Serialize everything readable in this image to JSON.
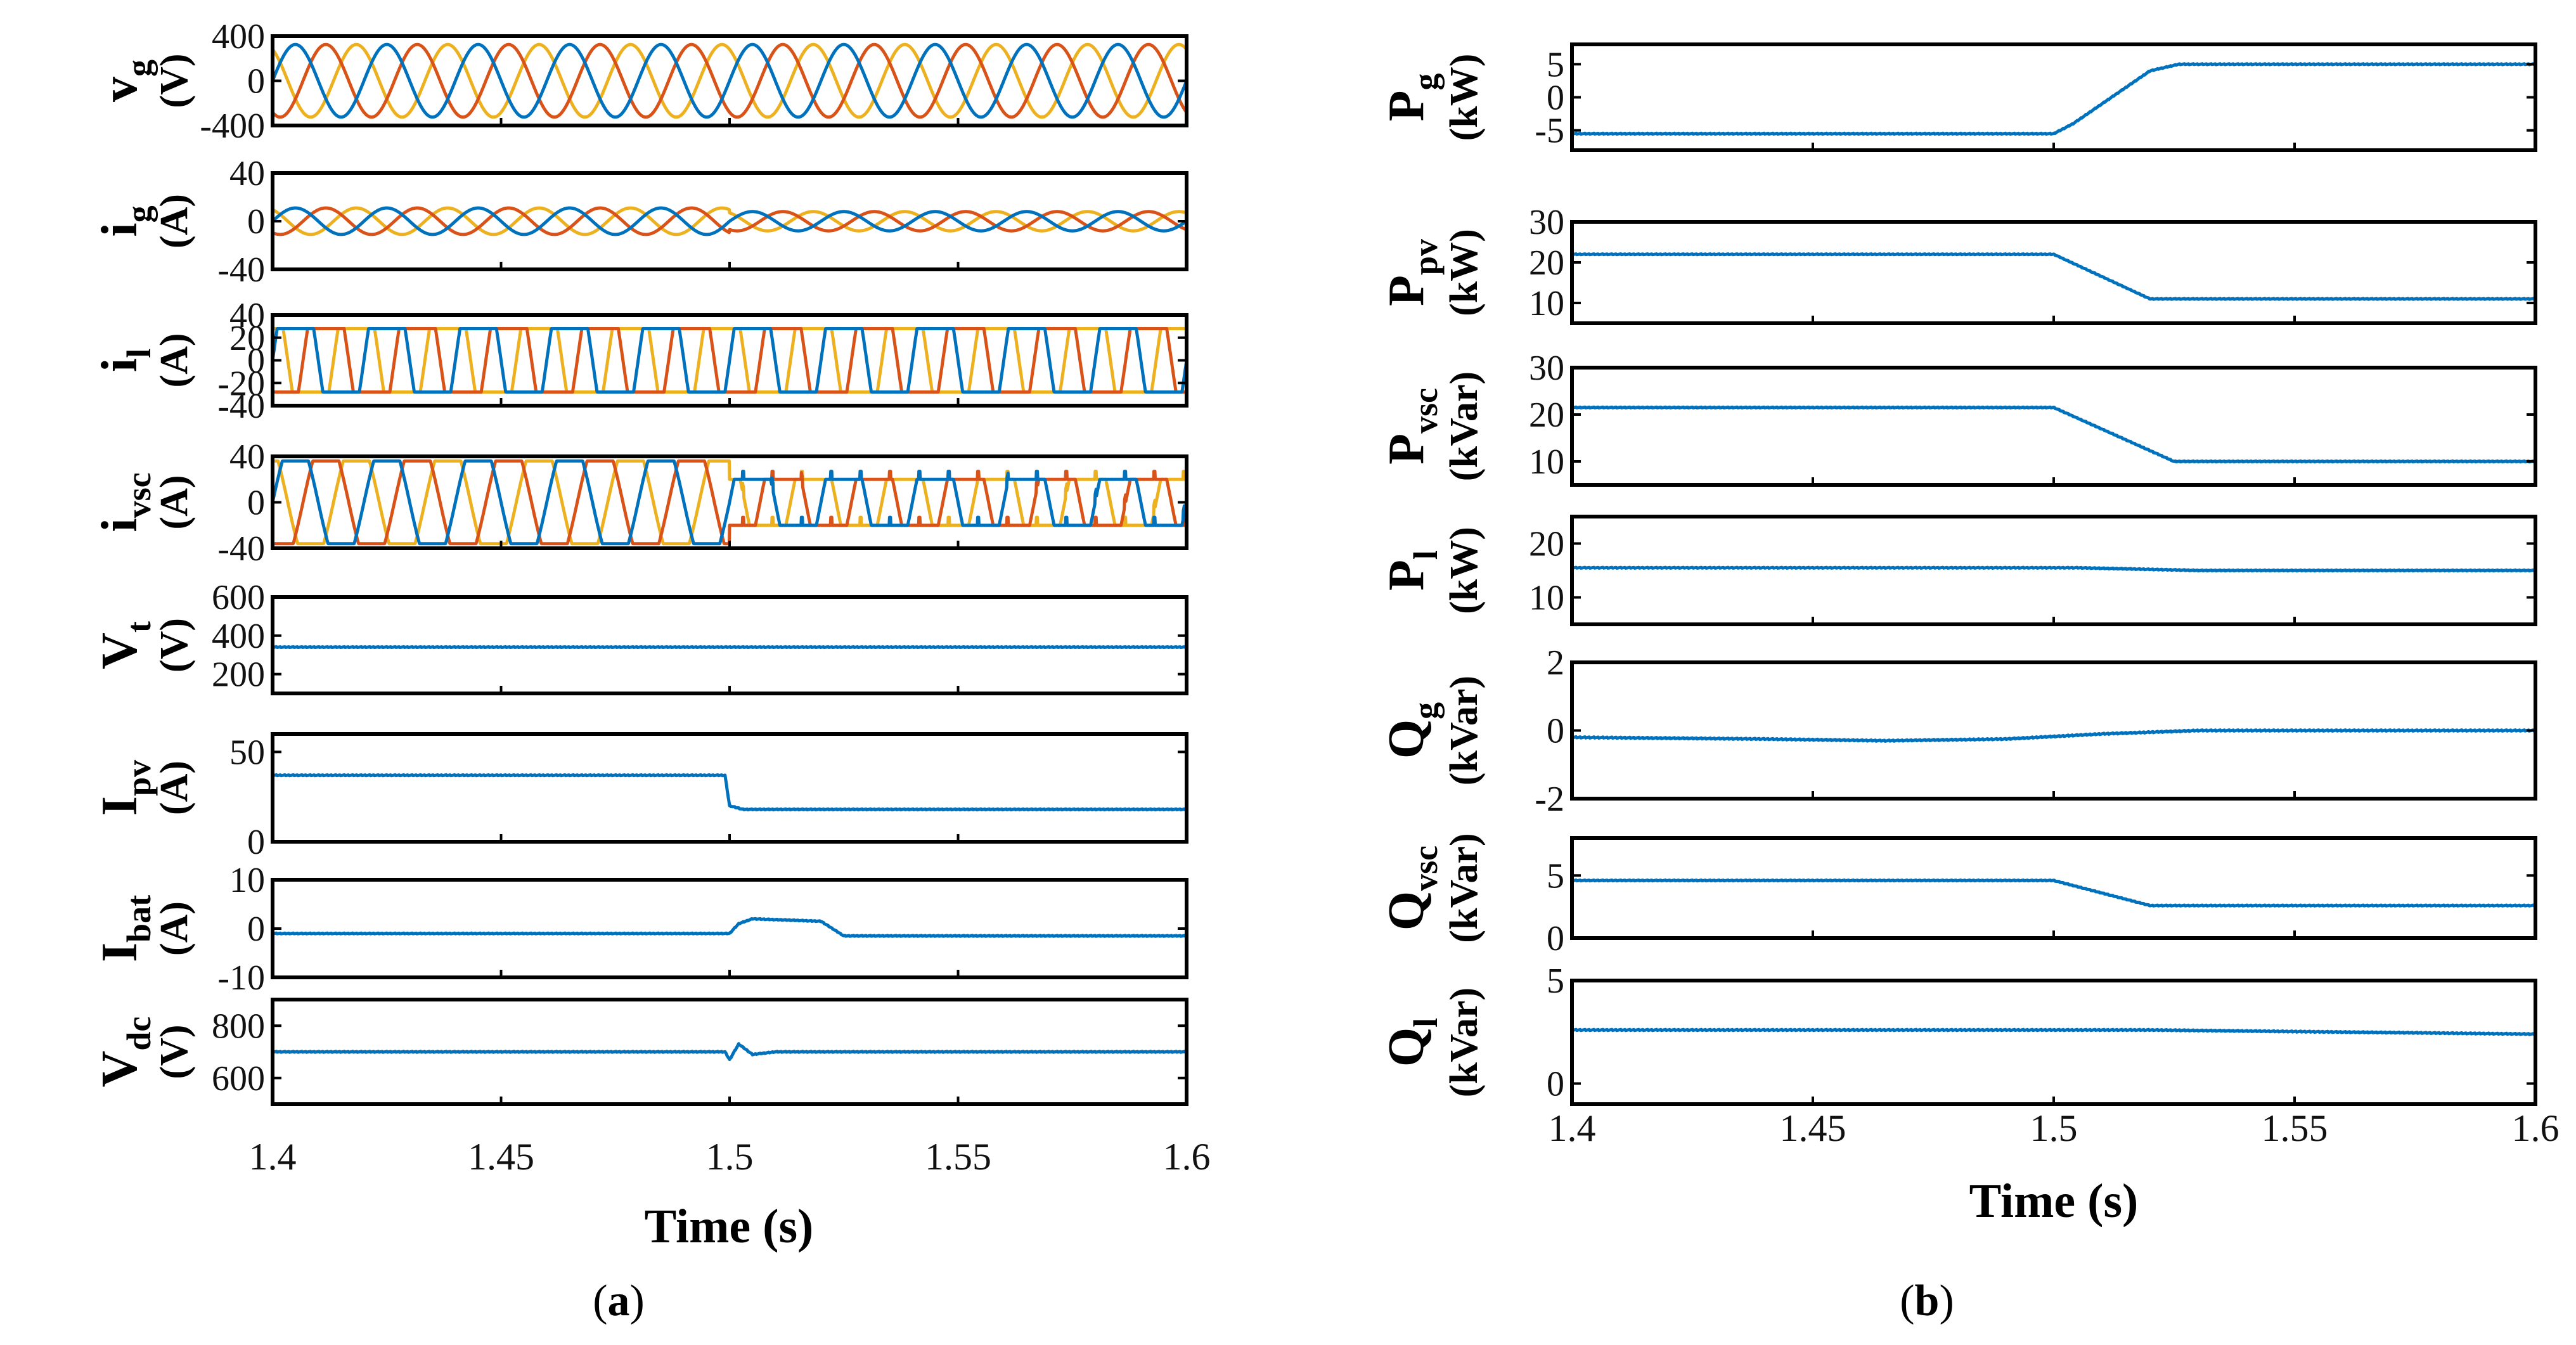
{
  "colors": {
    "phase_a": "#0072BD",
    "phase_b": "#D95319",
    "phase_c": "#EDB120",
    "trace": "#0072BD",
    "frame": "#000000"
  },
  "chart_data": [
    {
      "id": "a",
      "caption": {
        "open": "(",
        "letter": "a",
        "close": ")"
      },
      "xlabel": "Time (s)",
      "xlim": [
        1.4,
        1.6
      ],
      "xticks": [
        1.4,
        1.45,
        1.5,
        1.55,
        1.6
      ],
      "xtick_labels": [
        "1.4",
        "1.45",
        "1.5",
        "1.55",
        "1.6"
      ],
      "subplots": [
        {
          "sym": "v",
          "sub": "g",
          "unit": "(V)",
          "ylim": [
            -400,
            400
          ],
          "yticks": [
            -400,
            0,
            400
          ],
          "ytick_labels": [
            "-400",
            "0",
            "400"
          ],
          "type": "three_phase_sine",
          "freq_hz": 50,
          "amp_before": 325,
          "amp_after": 325
        },
        {
          "sym": "i",
          "sub": "g",
          "unit": "(A)",
          "ylim": [
            -40,
            40
          ],
          "yticks": [
            -40,
            0,
            40
          ],
          "ytick_labels": [
            "-40",
            "0",
            "40"
          ],
          "type": "three_phase_sine",
          "freq_hz": 50,
          "amp_before": 11,
          "amp_after": 8
        },
        {
          "sym": "i",
          "sub": "l",
          "unit": "(A)",
          "ylim": [
            -40,
            40
          ],
          "yticks": [
            -40,
            -20,
            0,
            20,
            40
          ],
          "ytick_labels": [
            "-40",
            "-20",
            "0",
            "20",
            "40"
          ],
          "type": "three_phase_square",
          "freq_hz": 50,
          "amp_before": 28,
          "amp_after": 28
        },
        {
          "sym": "i",
          "sub": "vsc",
          "unit": "(A)",
          "ylim": [
            -40,
            40
          ],
          "yticks": [
            -40,
            0,
            40
          ],
          "ytick_labels": [
            "-40",
            "0",
            "40"
          ],
          "type": "three_phase_pulsed",
          "freq_hz": 50,
          "amp_before": 36,
          "amp_after": 20
        },
        {
          "sym": "V",
          "sub": "t",
          "unit": "(V)",
          "ylim": [
            100,
            600
          ],
          "yticks": [
            200,
            400,
            600
          ],
          "ytick_labels": [
            "200",
            "400",
            "600"
          ],
          "type": "signal",
          "t": [
            1.4,
            1.6
          ],
          "y": [
            340,
            340
          ]
        },
        {
          "sym": "I",
          "sub": "pv",
          "unit": "(A)",
          "ylim": [
            0,
            60
          ],
          "yticks": [
            0,
            50
          ],
          "ytick_labels": [
            "0",
            "50"
          ],
          "type": "signal",
          "t": [
            1.4,
            1.499,
            1.5,
            1.503,
            1.6
          ],
          "y": [
            37,
            37,
            20,
            18,
            18
          ]
        },
        {
          "sym": "I",
          "sub": "bat",
          "unit": "(A)",
          "ylim": [
            -10,
            10
          ],
          "yticks": [
            -10,
            0,
            10
          ],
          "ytick_labels": [
            "-10",
            "0",
            "10"
          ],
          "type": "signal",
          "t": [
            1.4,
            1.5,
            1.502,
            1.505,
            1.52,
            1.525,
            1.6
          ],
          "y": [
            -1,
            -1,
            1,
            2,
            1.5,
            -1.5,
            -1.5
          ]
        },
        {
          "sym": "V",
          "sub": "dc",
          "unit": "(V)",
          "ylim": [
            500,
            900
          ],
          "yticks": [
            600,
            800
          ],
          "ytick_labels": [
            "600",
            "800"
          ],
          "type": "signal",
          "t": [
            1.4,
            1.499,
            1.5,
            1.502,
            1.505,
            1.51,
            1.6
          ],
          "y": [
            700,
            700,
            670,
            730,
            690,
            700,
            700
          ]
        }
      ]
    },
    {
      "id": "b",
      "caption": {
        "open": "(",
        "letter": "b",
        "close": ")"
      },
      "xlabel": "Time (s)",
      "xlim": [
        1.4,
        1.6
      ],
      "xticks": [
        1.4,
        1.45,
        1.5,
        1.55,
        1.6
      ],
      "xtick_labels": [
        "1.4",
        "1.45",
        "1.5",
        "1.55",
        "1.6"
      ],
      "subplots": [
        {
          "sym": "P",
          "sub": "g",
          "unit": "(kW)",
          "ylim": [
            -8,
            8
          ],
          "yticks": [
            -5,
            0,
            5
          ],
          "ytick_labels": [
            "-5",
            "0",
            "5"
          ],
          "type": "signal",
          "t": [
            1.4,
            1.5,
            1.504,
            1.52,
            1.526,
            1.6
          ],
          "y": [
            -5.5,
            -5.5,
            -4,
            4,
            5,
            5
          ]
        },
        {
          "sym": "P",
          "sub": "pv",
          "unit": "(kW)",
          "ylim": [
            5,
            30
          ],
          "yticks": [
            10,
            20,
            30
          ],
          "ytick_labels": [
            "10",
            "20",
            "30"
          ],
          "type": "signal",
          "t": [
            1.4,
            1.5,
            1.52,
            1.6
          ],
          "y": [
            22,
            22,
            11,
            11
          ]
        },
        {
          "sym": "P",
          "sub": "vsc",
          "unit": "(kVar)",
          "ylim": [
            5,
            30
          ],
          "yticks": [
            10,
            20,
            30
          ],
          "ytick_labels": [
            "10",
            "20",
            "30"
          ],
          "type": "signal",
          "t": [
            1.4,
            1.5,
            1.525,
            1.6
          ],
          "y": [
            21.5,
            21.5,
            10,
            10
          ]
        },
        {
          "sym": "P",
          "sub": "l",
          "unit": "(kW)",
          "ylim": [
            5,
            25
          ],
          "yticks": [
            10,
            20
          ],
          "ytick_labels": [
            "10",
            "20"
          ],
          "type": "signal",
          "t": [
            1.4,
            1.505,
            1.53,
            1.6
          ],
          "y": [
            15.5,
            15.5,
            15,
            15
          ]
        },
        {
          "sym": "Q",
          "sub": "g",
          "unit": "(kVar)",
          "ylim": [
            -2,
            2
          ],
          "yticks": [
            -2,
            0,
            2
          ],
          "ytick_labels": [
            "-2",
            "0",
            "2"
          ],
          "type": "signal",
          "t": [
            1.4,
            1.44,
            1.465,
            1.49,
            1.51,
            1.53,
            1.6
          ],
          "y": [
            -0.2,
            -0.25,
            -0.3,
            -0.25,
            -0.1,
            0,
            0
          ]
        },
        {
          "sym": "Q",
          "sub": "vsc",
          "unit": "(kVar)",
          "ylim": [
            0,
            8
          ],
          "yticks": [
            0,
            5
          ],
          "ytick_labels": [
            "0",
            "5"
          ],
          "type": "signal",
          "t": [
            1.4,
            1.5,
            1.52,
            1.6
          ],
          "y": [
            4.6,
            4.6,
            2.6,
            2.6
          ]
        },
        {
          "sym": "Q",
          "sub": "l",
          "unit": "(kVar)",
          "ylim": [
            -1,
            5
          ],
          "yticks": [
            0,
            5
          ],
          "ytick_labels": [
            "0",
            "5"
          ],
          "type": "signal",
          "t": [
            1.4,
            1.52,
            1.6
          ],
          "y": [
            2.6,
            2.6,
            2.4
          ]
        }
      ]
    }
  ]
}
